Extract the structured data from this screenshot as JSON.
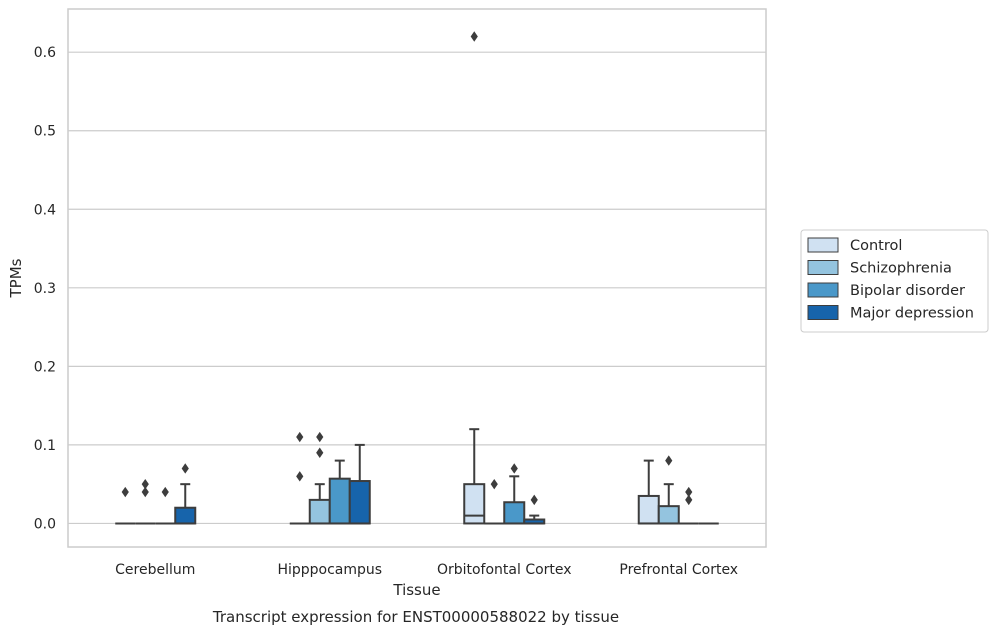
{
  "chart_data": {
    "type": "boxplot",
    "title": "",
    "caption": "Transcript expression for ENST00000588022 by tissue",
    "xlabel": "Tissue",
    "ylabel": "TPMs",
    "ylim": [
      -0.03,
      0.655
    ],
    "yticks": [
      0.0,
      0.1,
      0.2,
      0.3,
      0.4,
      0.5,
      0.6
    ],
    "ytick_labels": [
      "0.0",
      "0.1",
      "0.2",
      "0.3",
      "0.4",
      "0.5",
      "0.6"
    ],
    "categories": [
      "Cerebellum",
      "Hipppocampus",
      "Orbitofontal Cortex",
      "Prefrontal Cortex"
    ],
    "grid": true,
    "legend_position": "right",
    "series": [
      {
        "name": "Control",
        "color": "#d0e1f2",
        "boxes": [
          {
            "q1": 0.0,
            "median": 0.0,
            "q3": 0.0,
            "whislo": 0.0,
            "whishi": 0.0,
            "fliers": [
              0.04
            ]
          },
          {
            "q1": 0.0,
            "median": 0.0,
            "q3": 0.0,
            "whislo": 0.0,
            "whishi": 0.0,
            "fliers": [
              0.06,
              0.11
            ]
          },
          {
            "q1": 0.0,
            "median": 0.01,
            "q3": 0.05,
            "whislo": 0.0,
            "whishi": 0.12,
            "fliers": [
              0.62
            ]
          },
          {
            "q1": 0.0,
            "median": 0.0,
            "q3": 0.035,
            "whislo": 0.0,
            "whishi": 0.08,
            "fliers": []
          }
        ]
      },
      {
        "name": "Schizophrenia",
        "color": "#94c4df",
        "boxes": [
          {
            "q1": 0.0,
            "median": 0.0,
            "q3": 0.0,
            "whislo": 0.0,
            "whishi": 0.0,
            "fliers": [
              0.04,
              0.05
            ]
          },
          {
            "q1": 0.0,
            "median": 0.0,
            "q3": 0.03,
            "whislo": 0.0,
            "whishi": 0.05,
            "fliers": [
              0.09,
              0.11
            ]
          },
          {
            "q1": 0.0,
            "median": 0.0,
            "q3": 0.0,
            "whislo": 0.0,
            "whishi": 0.0,
            "fliers": [
              0.05
            ]
          },
          {
            "q1": 0.0,
            "median": 0.0,
            "q3": 0.022,
            "whislo": 0.0,
            "whishi": 0.05,
            "fliers": [
              0.08
            ]
          }
        ]
      },
      {
        "name": "Bipolar disorder",
        "color": "#4a98c9",
        "boxes": [
          {
            "q1": 0.0,
            "median": 0.0,
            "q3": 0.0,
            "whislo": 0.0,
            "whishi": 0.0,
            "fliers": [
              0.04
            ]
          },
          {
            "q1": 0.0,
            "median": 0.0,
            "q3": 0.057,
            "whislo": 0.0,
            "whishi": 0.08,
            "fliers": []
          },
          {
            "q1": 0.0,
            "median": 0.0,
            "q3": 0.027,
            "whislo": 0.0,
            "whishi": 0.06,
            "fliers": [
              0.07
            ]
          },
          {
            "q1": 0.0,
            "median": 0.0,
            "q3": 0.0,
            "whislo": 0.0,
            "whishi": 0.0,
            "fliers": [
              0.03,
              0.04
            ]
          }
        ]
      },
      {
        "name": "Major depression",
        "color": "#1764ab",
        "boxes": [
          {
            "q1": 0.0,
            "median": 0.0,
            "q3": 0.02,
            "whislo": 0.0,
            "whishi": 0.05,
            "fliers": [
              0.07
            ]
          },
          {
            "q1": 0.0,
            "median": 0.0,
            "q3": 0.054,
            "whislo": 0.0,
            "whishi": 0.1,
            "fliers": []
          },
          {
            "q1": 0.0,
            "median": 0.0,
            "q3": 0.005,
            "whislo": 0.0,
            "whishi": 0.01,
            "fliers": [
              0.03
            ]
          },
          {
            "q1": 0.0,
            "median": 0.0,
            "q3": 0.0,
            "whislo": 0.0,
            "whishi": 0.0,
            "fliers": []
          }
        ]
      }
    ]
  }
}
